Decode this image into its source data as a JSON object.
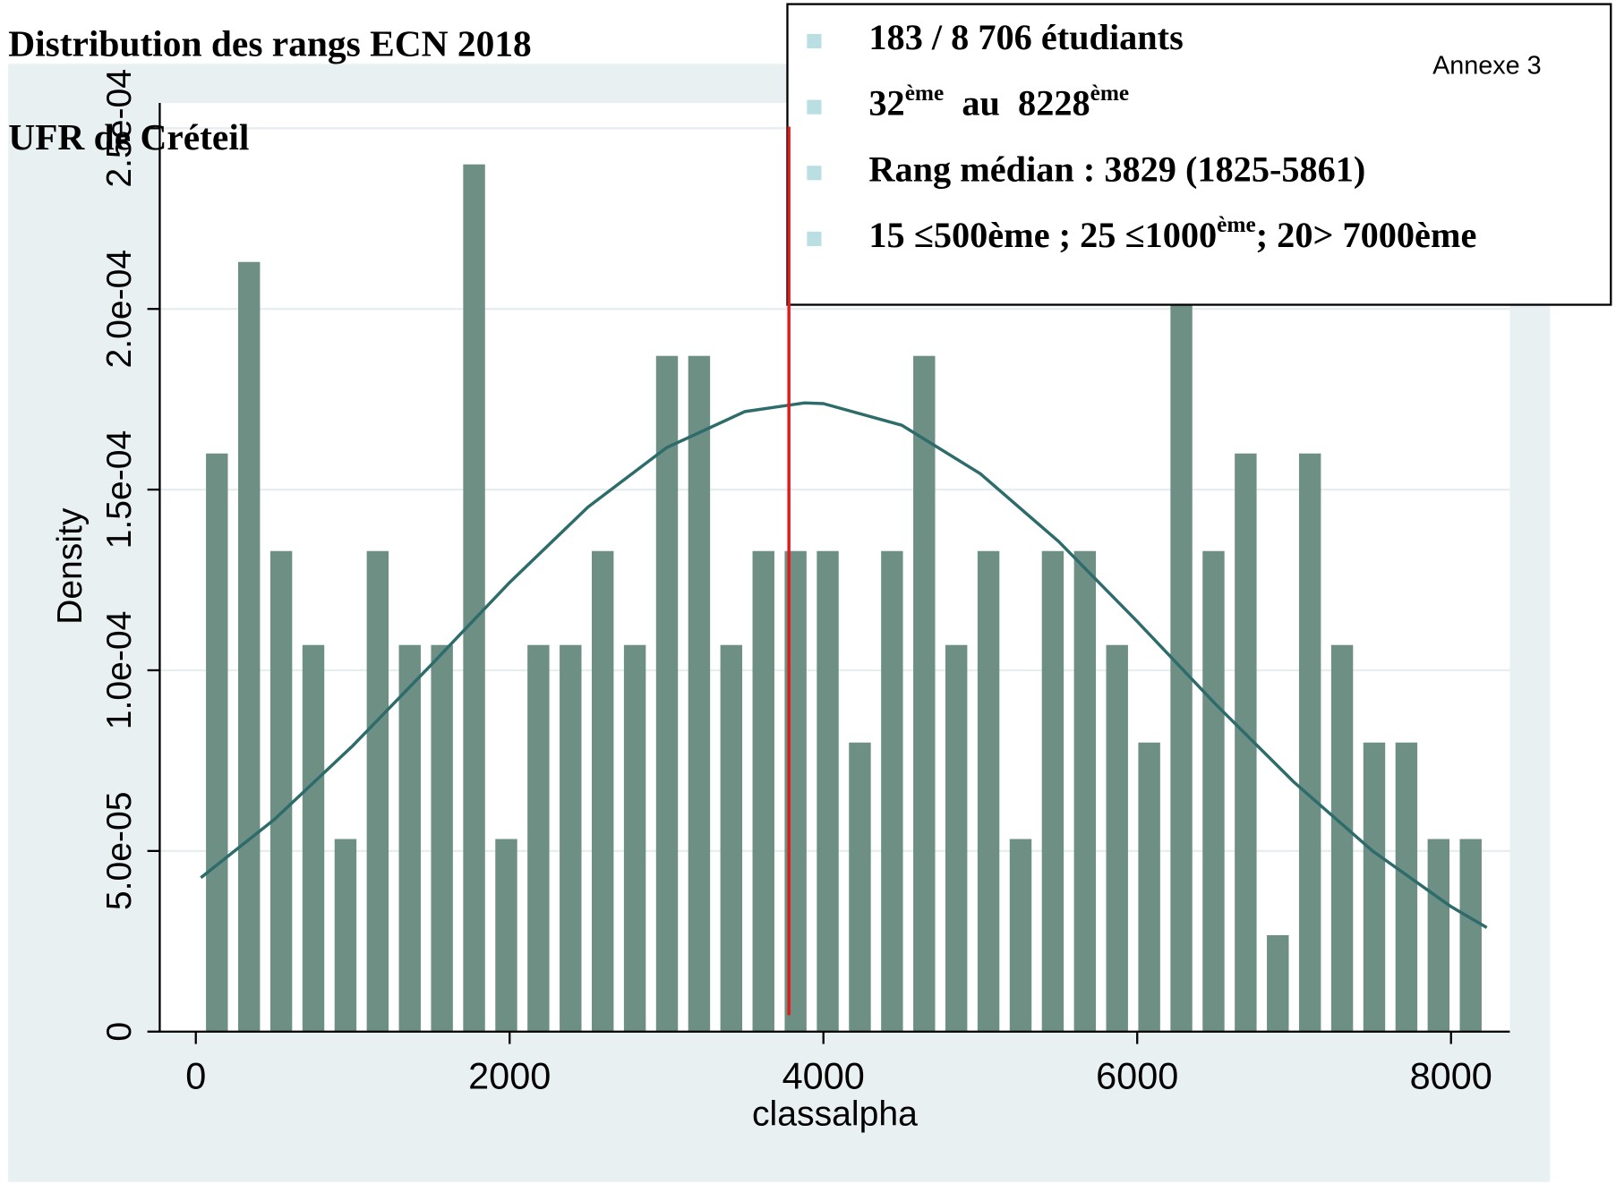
{
  "chart_data": {
    "type": "histogram",
    "title": "Distribution des rangs ECN 2018",
    "subtitle": "UFR de Créteil",
    "annotation": "Annexe 3",
    "x_label": "classalpha",
    "y_label": "Density",
    "bins": [
      32,
      236.9,
      441.8,
      646.7,
      851.6,
      1056.5,
      1261.4,
      1466.3,
      1671.2,
      1876.1,
      2081,
      2285.9,
      2490.8,
      2695.7,
      2900.6,
      3105.5,
      3310.4,
      3515.3,
      3720.2,
      3925.1,
      4130,
      4334.9,
      4539.8,
      4744.7,
      4949.6,
      5154.5,
      5359.4,
      5564.3,
      5769.2,
      5974.1,
      6179,
      6383.9,
      6588.8,
      6793.7,
      6998.6,
      7203.5,
      7408.4,
      7613.3,
      7818.2,
      8023.1,
      8228
    ],
    "values": [
      0.00016,
      0.000213,
      0.000133,
      0.000107,
      5.33e-05,
      0.000133,
      0.000107,
      0.000107,
      0.00024,
      5.33e-05,
      0.000107,
      0.000107,
      0.000133,
      0.000107,
      0.000187,
      0.000187,
      0.000107,
      0.000133,
      0.000133,
      0.000133,
      8e-05,
      0.000133,
      0.000187,
      0.000107,
      0.000133,
      5.33e-05,
      0.000133,
      0.000133,
      0.000107,
      8e-05,
      0.000213,
      0.000133,
      0.00016,
      2.67e-05,
      0.00016,
      0.000107,
      8e-05,
      8e-05,
      5.33e-05,
      5.33e-05
    ],
    "color": "#6e8f84",
    "curve": {
      "x": [
        32,
        500,
        1000,
        1500,
        2000,
        2500,
        3000,
        3500,
        3880,
        4000,
        4500,
        5000,
        5500,
        6000,
        6500,
        7000,
        7500,
        8000,
        8228
      ],
      "values": [
        4.26e-05,
        5.87e-05,
        7.91e-05,
        0.0001015,
        0.0001243,
        0.0001452,
        0.0001616,
        0.0001716,
        0.000174,
        0.0001738,
        0.0001678,
        0.0001544,
        0.0001356,
        0.0001135,
        9.06e-05,
        6.9e-05,
        5e-05,
        3.46e-05,
        2.88e-05
      ],
      "color": "#2e6b6b"
    },
    "reference_line": {
      "x": 3780,
      "color": "#e41a1a"
    },
    "xlim": [
      -230,
      8375
    ],
    "ylim": [
      0,
      0.000257
    ],
    "xticks": [
      0,
      2000,
      4000,
      6000,
      8000
    ],
    "yticks": [
      0,
      {
        "value": 5e-05,
        "label": "5.0e-05"
      },
      {
        "value": 0.0001,
        "label": "1.0e-04"
      },
      {
        "value": 0.00015,
        "label": "1.5e-04"
      },
      {
        "value": 0.0002,
        "label": "2.0e-04"
      },
      {
        "value": 0.00025,
        "label": "2.5e-04"
      }
    ],
    "grid": true,
    "legend_box": [
      [
        {
          "text": "183 / 8 706 étudiants"
        }
      ],
      [
        {
          "text": "32"
        },
        {
          "text": "ème",
          "sup": true
        },
        {
          "text": "  au  8228"
        },
        {
          "text": "ème",
          "sup": true
        }
      ],
      [
        {
          "text": "Rang médian : 3829 (1825-5861)"
        }
      ],
      [
        {
          "text": "15 ≤500ème ; 25 ≤1000"
        },
        {
          "text": "ème",
          "sup": true
        },
        {
          "text": "; 20> 7000ème"
        }
      ]
    ]
  }
}
